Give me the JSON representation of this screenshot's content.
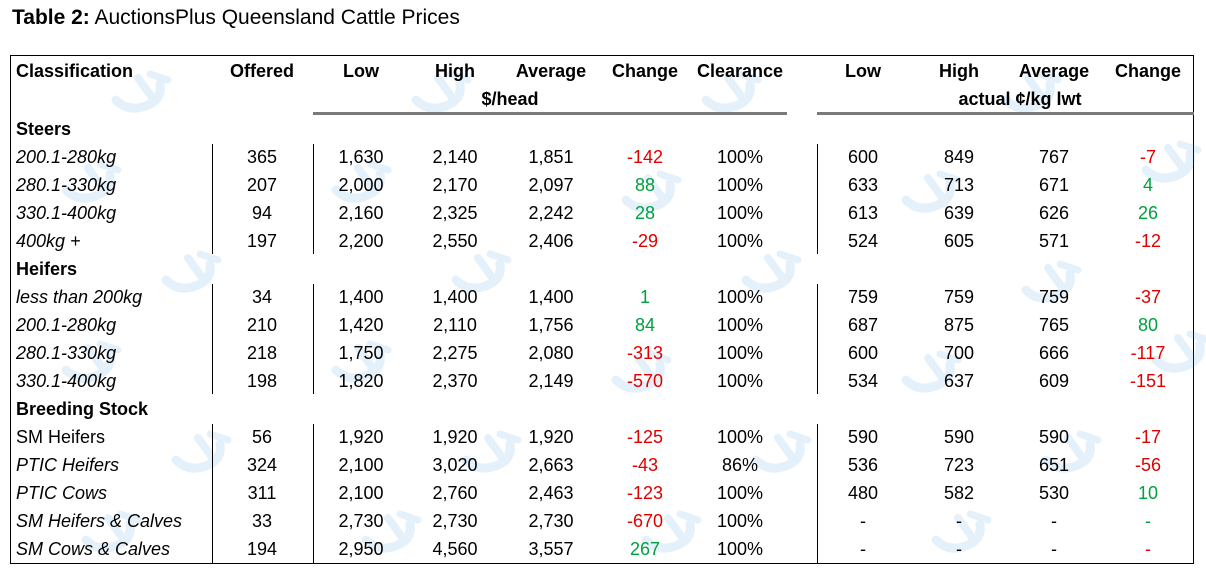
{
  "caption": {
    "prefix": "Table 2:",
    "title": "AuctionsPlus Queensland Cattle Prices"
  },
  "headers": {
    "classification": "Classification",
    "offered": "Offered",
    "low": "Low",
    "high": "High",
    "average": "Average",
    "change": "Change",
    "clearance": "Clearance",
    "low2": "Low",
    "high2": "High",
    "average2": "Average",
    "change2": "Change",
    "unit_head": "$/head",
    "unit_kg": "actual ¢/kg lwt"
  },
  "rows": [
    {
      "type": "section",
      "label": "Steers"
    },
    {
      "type": "data",
      "label": "200.1-280kg",
      "italic": true,
      "offered": "365",
      "low": "1,630",
      "high": "2,140",
      "avg": "1,851",
      "change": "-142",
      "clearance": "100%",
      "kg_low": "600",
      "kg_high": "849",
      "kg_avg": "767",
      "kg_change": "-7"
    },
    {
      "type": "data",
      "label": "280.1-330kg",
      "italic": true,
      "offered": "207",
      "low": "2,000",
      "high": "2,170",
      "avg": "2,097",
      "change": "88",
      "clearance": "100%",
      "kg_low": "633",
      "kg_high": "713",
      "kg_avg": "671",
      "kg_change": "4"
    },
    {
      "type": "data",
      "label": "330.1-400kg",
      "italic": true,
      "offered": "94",
      "low": "2,160",
      "high": "2,325",
      "avg": "2,242",
      "change": "28",
      "clearance": "100%",
      "kg_low": "613",
      "kg_high": "639",
      "kg_avg": "626",
      "kg_change": "26"
    },
    {
      "type": "data",
      "label": "400kg +",
      "italic": true,
      "offered": "197",
      "low": "2,200",
      "high": "2,550",
      "avg": "2,406",
      "change": "-29",
      "clearance": "100%",
      "kg_low": "524",
      "kg_high": "605",
      "kg_avg": "571",
      "kg_change": "-12"
    },
    {
      "type": "section",
      "label": "Heifers"
    },
    {
      "type": "data",
      "label": "less than 200kg",
      "italic": true,
      "offered": "34",
      "low": "1,400",
      "high": "1,400",
      "avg": "1,400",
      "change": "1",
      "clearance": "100%",
      "kg_low": "759",
      "kg_high": "759",
      "kg_avg": "759",
      "kg_change": "-37"
    },
    {
      "type": "data",
      "label": "200.1-280kg",
      "italic": true,
      "offered": "210",
      "low": "1,420",
      "high": "2,110",
      "avg": "1,756",
      "change": "84",
      "clearance": "100%",
      "kg_low": "687",
      "kg_high": "875",
      "kg_avg": "765",
      "kg_change": "80"
    },
    {
      "type": "data",
      "label": "280.1-330kg",
      "italic": true,
      "offered": "218",
      "low": "1,750",
      "high": "2,275",
      "avg": "2,080",
      "change": "-313",
      "clearance": "100%",
      "kg_low": "600",
      "kg_high": "700",
      "kg_avg": "666",
      "kg_change": "-117"
    },
    {
      "type": "data",
      "label": "330.1-400kg",
      "italic": true,
      "offered": "198",
      "low": "1,820",
      "high": "2,370",
      "avg": "2,149",
      "change": "-570",
      "clearance": "100%",
      "kg_low": "534",
      "kg_high": "637",
      "kg_avg": "609",
      "kg_change": "-151"
    },
    {
      "type": "section",
      "label": "Breeding Stock"
    },
    {
      "type": "data",
      "label": "SM Heifers",
      "italic": false,
      "offered": "56",
      "low": "1,920",
      "high": "1,920",
      "avg": "1,920",
      "change": "-125",
      "clearance": "100%",
      "kg_low": "590",
      "kg_high": "590",
      "kg_avg": "590",
      "kg_change": "-17"
    },
    {
      "type": "data",
      "label": "PTIC Heifers",
      "italic": true,
      "offered": "324",
      "low": "2,100",
      "high": "3,020",
      "avg": "2,663",
      "change": "-43",
      "clearance": "86%",
      "kg_low": "536",
      "kg_high": "723",
      "kg_avg": "651",
      "kg_change": "-56"
    },
    {
      "type": "data",
      "label": "PTIC Cows",
      "italic": true,
      "offered": "311",
      "low": "2,100",
      "high": "2,760",
      "avg": "2,463",
      "change": "-123",
      "clearance": "100%",
      "kg_low": "480",
      "kg_high": "582",
      "kg_avg": "530",
      "kg_change": "10"
    },
    {
      "type": "data",
      "label": "SM Heifers & Calves",
      "italic": true,
      "offered": "33",
      "low": "2,730",
      "high": "2,730",
      "avg": "2,730",
      "change": "-670",
      "clearance": "100%",
      "kg_low": "-",
      "kg_high": "-",
      "kg_avg": "-",
      "kg_change": "-",
      "kg_change_color": "pos"
    },
    {
      "type": "data",
      "label": "SM Cows & Calves",
      "italic": true,
      "offered": "194",
      "low": "2,950",
      "high": "4,560",
      "avg": "3,557",
      "change": "267",
      "clearance": "100%",
      "kg_low": "-",
      "kg_high": "-",
      "kg_avg": "-",
      "kg_change": "-",
      "kg_change_color": "neg"
    }
  ],
  "colors": {
    "negative": "#e00000",
    "positive": "#00a040",
    "watermark": "#4aa3df",
    "rule": "#7a7a7a"
  }
}
